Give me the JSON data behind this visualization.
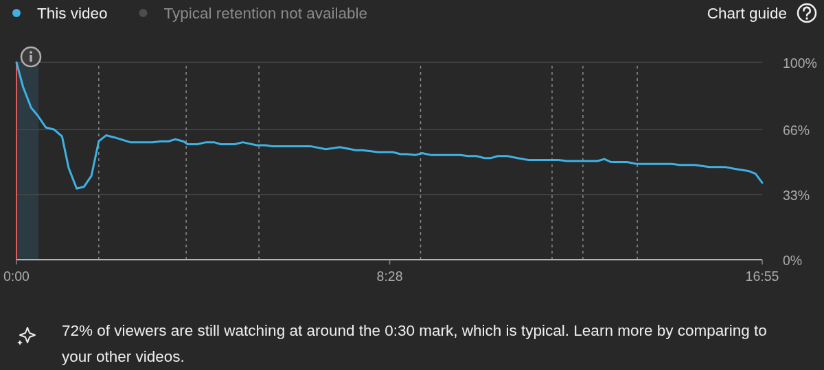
{
  "chart_data": {
    "type": "line",
    "x": [
      0,
      9,
      20,
      29,
      40,
      51,
      62,
      71,
      82,
      92,
      102,
      112,
      122,
      133,
      155,
      185,
      196,
      207,
      216,
      227,
      233,
      246,
      258,
      269,
      278,
      297,
      308,
      327,
      339,
      348,
      400,
      421,
      431,
      440,
      462,
      471,
      492,
      512,
      523,
      532,
      543,
      552,
      565,
      604,
      615,
      626,
      637,
      646,
      655,
      668,
      682,
      697,
      738,
      749,
      791,
      800,
      809,
      831,
      844,
      892,
      903,
      923,
      943,
      964,
      978,
      996,
      1006,
      1015
    ],
    "series": [
      {
        "name": "This video",
        "color": "#3fb1e3",
        "values": [
          100,
          87.5,
          77,
          73,
          67,
          66,
          62.5,
          46.5,
          36,
          37,
          42.5,
          60,
          63,
          62,
          59.5,
          59.5,
          60,
          60,
          61,
          60,
          58.5,
          58.5,
          59.5,
          59.5,
          58.5,
          58.5,
          59.5,
          58,
          58,
          57.5,
          57.5,
          56,
          56.5,
          57,
          55.5,
          55.5,
          54.5,
          54.5,
          53.5,
          53.5,
          53,
          54,
          53,
          53,
          52.5,
          52.5,
          51.5,
          51.5,
          52.5,
          52.5,
          51.5,
          50.5,
          50.5,
          50,
          50,
          51,
          49.5,
          49.5,
          48.5,
          48.5,
          48,
          48,
          47,
          47,
          46,
          45,
          43.5,
          39
        ]
      },
      {
        "name": "Typical retention not available",
        "color": "#4d4d4d",
        "values": [
          null,
          null,
          null,
          null,
          null,
          null,
          null,
          null,
          null,
          null,
          null,
          null,
          null,
          null,
          null,
          null,
          null,
          null,
          null,
          null,
          null,
          null,
          null,
          null,
          null,
          null,
          null,
          null,
          null,
          null,
          null,
          null,
          null,
          null,
          null,
          null,
          null,
          null,
          null,
          null,
          null,
          null,
          null,
          null,
          null,
          null,
          null,
          null,
          null,
          null,
          null,
          null,
          null,
          null,
          null,
          null,
          null,
          null,
          null,
          null,
          null,
          null,
          null,
          null,
          null,
          null,
          null,
          null
        ]
      }
    ],
    "xlim": [
      0,
      1015
    ],
    "xticks": [
      {
        "value": 0,
        "label": "0:00"
      },
      {
        "value": 508,
        "label": "8:28"
      },
      {
        "value": 1015,
        "label": "16:55"
      }
    ],
    "ylim": [
      0,
      100
    ],
    "yticks": [
      {
        "value": 0,
        "label": "0%"
      },
      {
        "value": 33,
        "label": "33%"
      },
      {
        "value": 66,
        "label": "66%"
      },
      {
        "value": 100,
        "label": "100%"
      }
    ],
    "grid": "y",
    "legend": "top left",
    "bands": [
      {
        "axis": "x",
        "from": 0,
        "to": 30,
        "color": "#2c3a42"
      }
    ],
    "ref_lines": [
      {
        "axis": "x",
        "value": 0,
        "color": "#e05c5c",
        "line_style": "solid"
      },
      {
        "axis": "x",
        "value": 112,
        "color": "#8a8a8a",
        "line_style": "dashed"
      },
      {
        "axis": "x",
        "value": 231,
        "color": "#8a8a8a",
        "line_style": "dashed"
      },
      {
        "axis": "x",
        "value": 330,
        "color": "#8a8a8a",
        "line_style": "dashed"
      },
      {
        "axis": "x",
        "value": 550,
        "color": "#8a8a8a",
        "line_style": "dashed"
      },
      {
        "axis": "x",
        "value": 729,
        "color": "#8a8a8a",
        "line_style": "dashed"
      },
      {
        "axis": "x",
        "value": 771,
        "color": "#8a8a8a",
        "line_style": "dashed"
      },
      {
        "axis": "x",
        "value": 845,
        "color": "#8a8a8a",
        "line_style": "dashed"
      }
    ],
    "annotations": [
      "Chart guide",
      "72% of viewers are still watching at around the 0:30 mark, which is typical. Learn more by comparing to your other videos."
    ]
  }
}
